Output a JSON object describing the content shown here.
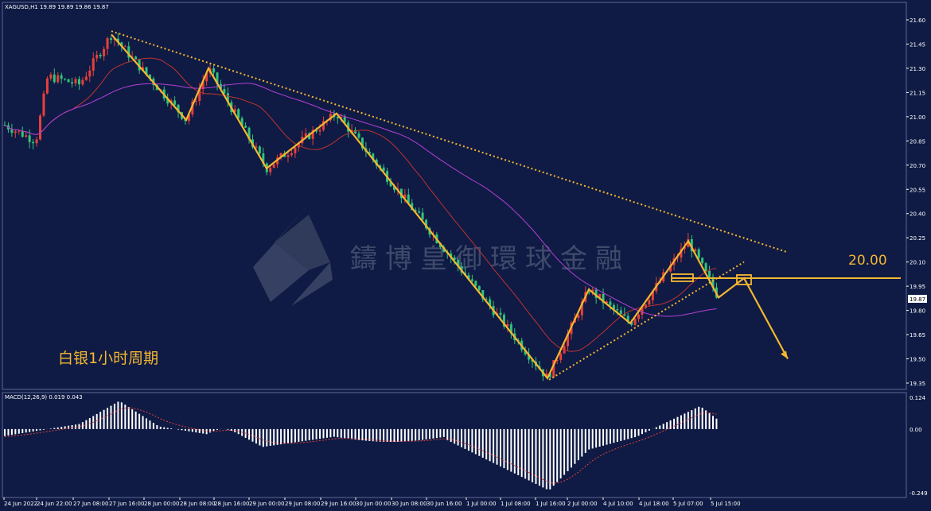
{
  "header": {
    "symbol": "XAGUSD,H1",
    "ohlc": "19.89 19.89 19.86 19.87"
  },
  "macd_header": "MACD(12,26,9) 0.019 0.043",
  "annotation_text": "白银1小时周期",
  "level_label": "20.00",
  "watermark": "鑄博皇御環球金融",
  "current_price_label": "19.87",
  "colors": {
    "background": "#0f1b44",
    "bull_candle": "#e8403a",
    "bear_candle": "#2fc47a",
    "ma_red": "#c0322f",
    "ma_purple": "#b53fd6",
    "annotation": "#f5b731",
    "macd_hist": "#ffffff",
    "macd_signal": "#e0403a"
  },
  "chart_data": {
    "type": "candlestick",
    "y_ticks": [
      "21.60",
      "21.45",
      "21.30",
      "21.15",
      "21.00",
      "20.85",
      "20.70",
      "20.55",
      "20.40",
      "20.25",
      "20.10",
      "19.95",
      "19.80",
      "19.65",
      "19.50",
      "19.35"
    ],
    "ylim": [
      19.33,
      21.64
    ],
    "x_tick_labels": [
      "24 Jun 2022",
      "24 Jun 22:00",
      "27 Jun 08:00",
      "27 Jun 16:00",
      "28 Jun 00:00",
      "28 Jun 08:00",
      "28 Jun 16:00",
      "29 Jun 00:00",
      "29 Jun 08:00",
      "29 Jun 16:00",
      "30 Jun 00:00",
      "30 Jun 08:00",
      "30 Jun 16:00",
      "1 Jul 00:00",
      "1 Jul 08:00",
      "1 Jul 16:00",
      "2 Jul 00:00",
      "4 Jul 10:00",
      "4 Jul 18:00",
      "5 Jul 07:00",
      "5 Jul 15:00"
    ],
    "key_prices": {
      "high": 21.5,
      "low": 19.38,
      "resistance_level": 20.0,
      "current": 19.87
    },
    "zigzag_path": [
      21.51,
      20.98,
      21.3,
      20.68,
      21.02,
      19.38,
      19.93,
      19.72,
      20.23,
      19.88,
      20.0,
      19.5
    ],
    "macd_ticks": [
      "0.124",
      "0.00",
      "-0.249"
    ],
    "macd_range": [
      -0.249,
      0.124
    ]
  }
}
